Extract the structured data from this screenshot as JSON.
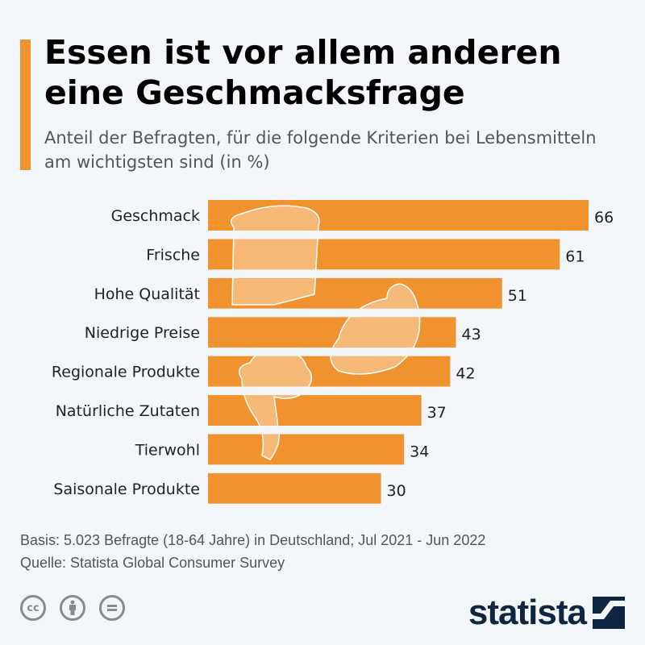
{
  "header": {
    "title": "Essen ist vor allem anderen eine Geschmacksfrage",
    "subtitle": "Anteil der Befragten, für die folgende Kriterien bei Lebensmitteln am wichtigsten sind (in %)"
  },
  "chart_data": {
    "type": "bar",
    "orientation": "horizontal",
    "categories": [
      "Geschmack",
      "Frische",
      "Hohe Qualität",
      "Niedrige Preise",
      "Regionale Produkte",
      "Natürliche Zutaten",
      "Tierwohl",
      "Saisonale Produkte"
    ],
    "values": [
      66,
      61,
      51,
      43,
      42,
      37,
      34,
      30
    ],
    "xlim": [
      0,
      66
    ],
    "grid": false,
    "bar_color": "#f0922e",
    "unit": "%"
  },
  "footer": {
    "basis": "Basis: 5.023 Befragte (18-64 Jahre) in Deutschland; Jul 2021 - Jun 2022",
    "source": "Quelle: Statista Global Consumer Survey",
    "license_icons": [
      "cc-icon",
      "by-icon",
      "nd-icon"
    ],
    "logo": "statista",
    "logo_color": "#0f2642"
  }
}
